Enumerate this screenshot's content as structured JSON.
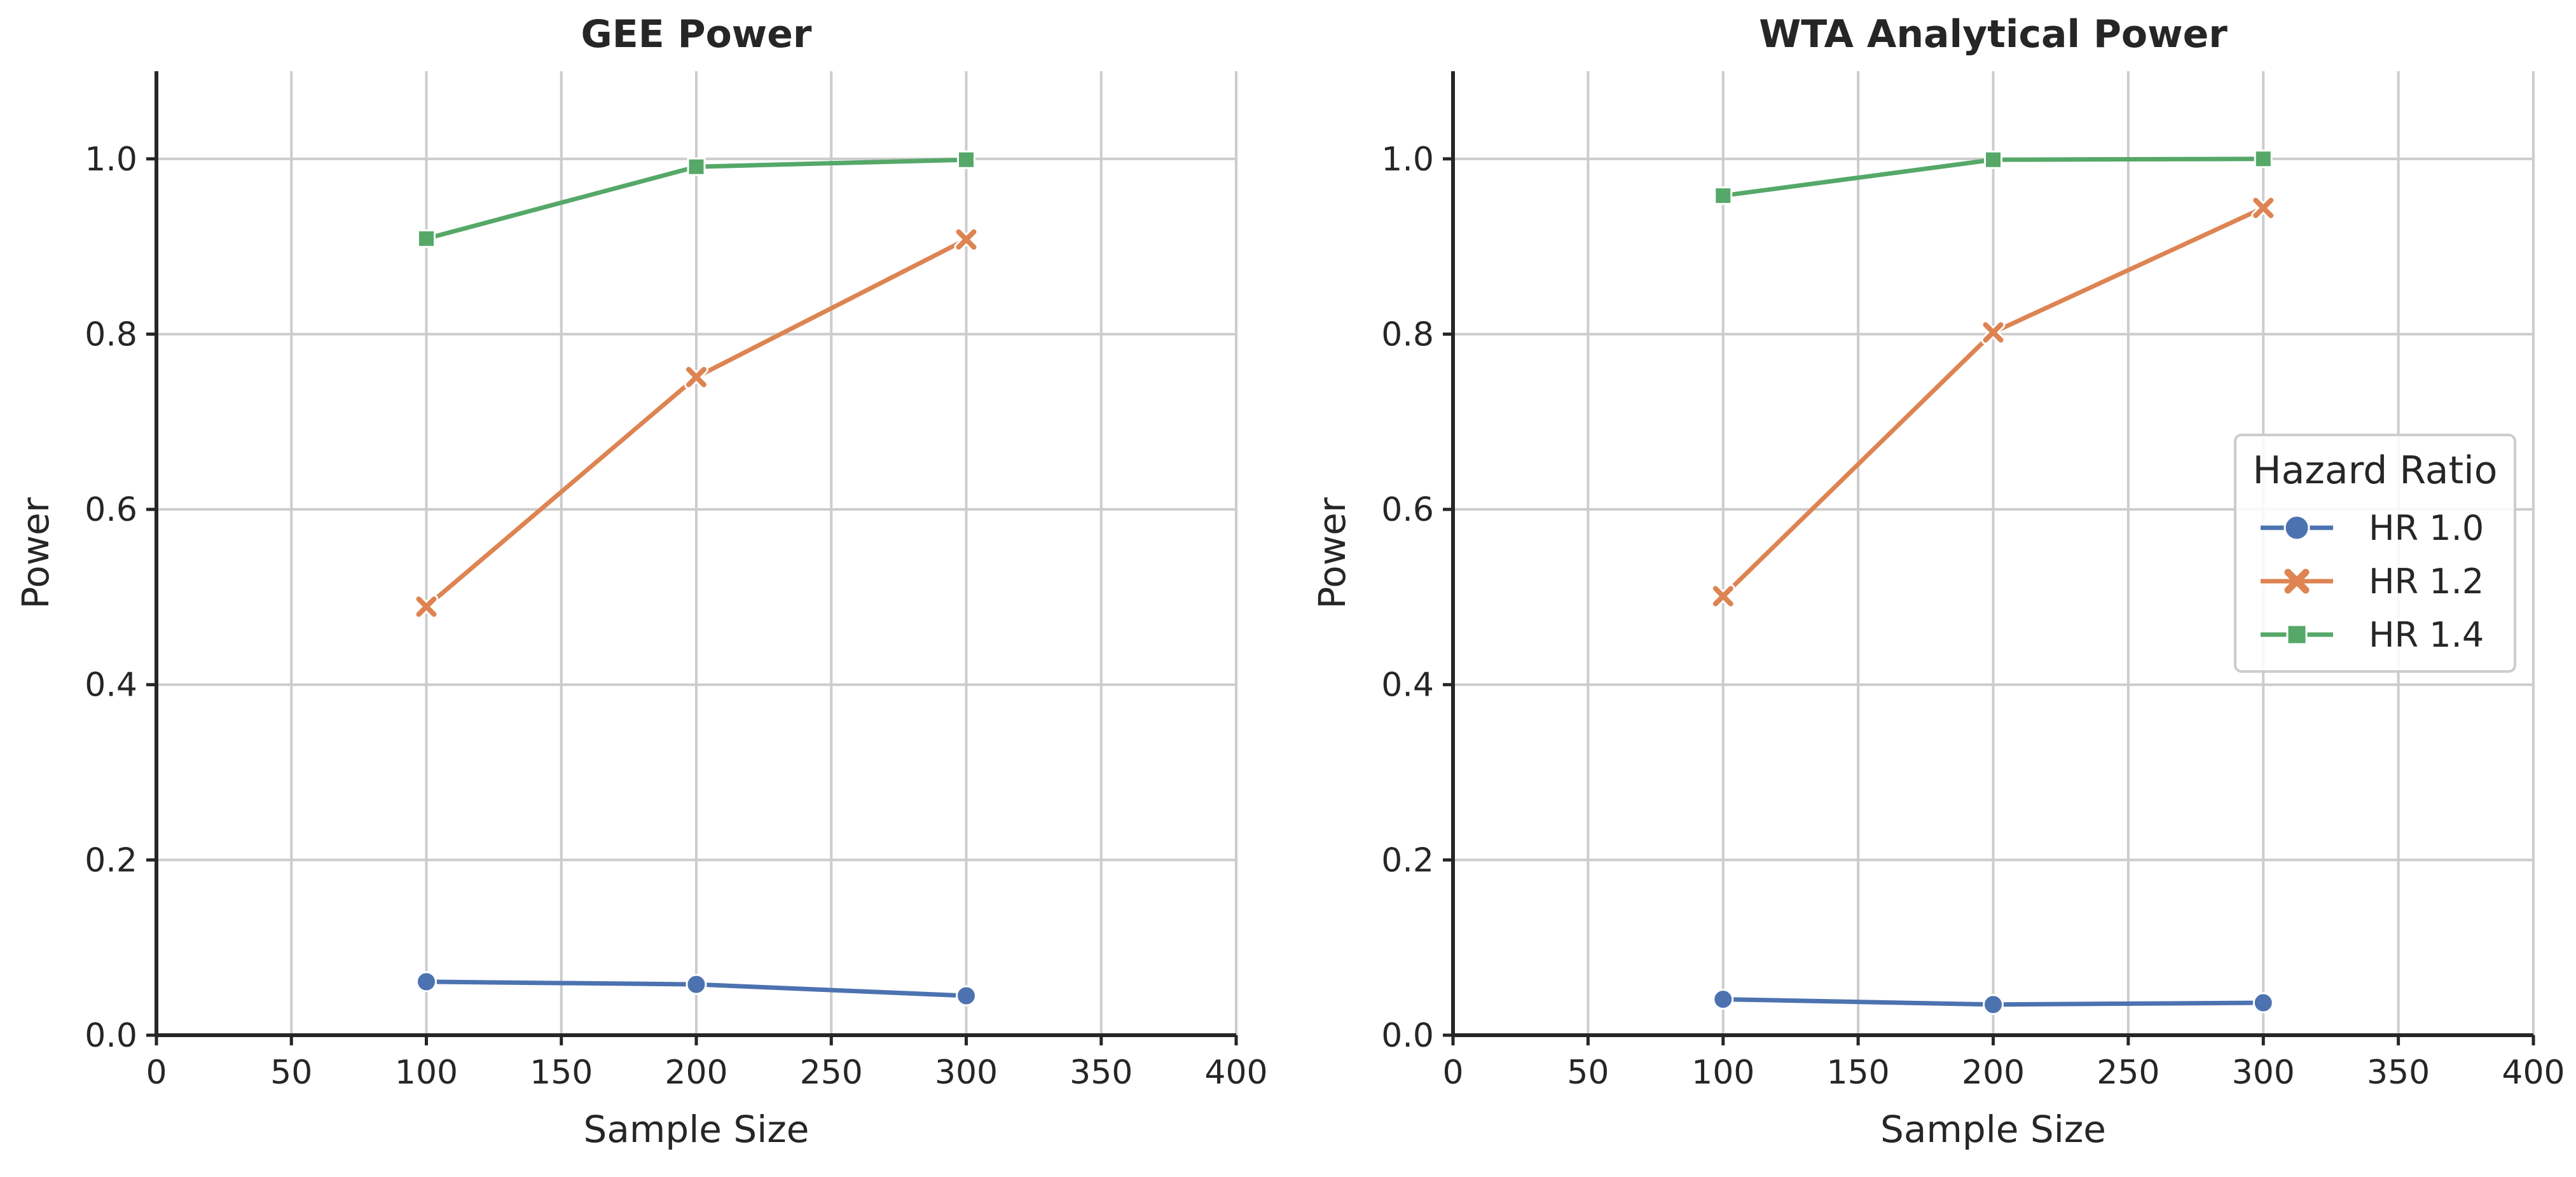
{
  "chart_data": [
    {
      "type": "line",
      "title": "GEE Power",
      "xlabel": "Sample Size",
      "ylabel": "Power",
      "xlim": [
        0,
        400
      ],
      "ylim": [
        0,
        1.1
      ],
      "xticks": [
        0,
        50,
        100,
        150,
        200,
        250,
        300,
        350,
        400
      ],
      "yticks": [
        0.0,
        0.2,
        0.4,
        0.6,
        0.8,
        1.0
      ],
      "grid": true,
      "show_legend": false,
      "x": [
        100,
        200,
        300
      ],
      "series": [
        {
          "name": "HR 1.0",
          "marker": "circle",
          "color": "#4c72b0",
          "values": [
            0.061,
            0.058,
            0.045
          ]
        },
        {
          "name": "HR 1.2",
          "marker": "x",
          "color": "#dd8452",
          "values": [
            0.489,
            0.751,
            0.908
          ]
        },
        {
          "name": "HR 1.4",
          "marker": "square",
          "color": "#55a868",
          "values": [
            0.909,
            0.991,
            0.999
          ]
        }
      ]
    },
    {
      "type": "line",
      "title": "WTA Analytical Power",
      "xlabel": "Sample Size",
      "ylabel": "Power",
      "xlim": [
        0,
        400
      ],
      "ylim": [
        0,
        1.1
      ],
      "xticks": [
        0,
        50,
        100,
        150,
        200,
        250,
        300,
        350,
        400
      ],
      "yticks": [
        0.0,
        0.2,
        0.4,
        0.6,
        0.8,
        1.0
      ],
      "grid": true,
      "show_legend": true,
      "legend_title": "Hazard Ratio",
      "legend_position": "center-right",
      "x": [
        100,
        200,
        300
      ],
      "series": [
        {
          "name": "HR 1.0",
          "marker": "circle",
          "color": "#4c72b0",
          "values": [
            0.041,
            0.035,
            0.037
          ]
        },
        {
          "name": "HR 1.2",
          "marker": "x",
          "color": "#dd8452",
          "values": [
            0.501,
            0.802,
            0.944
          ]
        },
        {
          "name": "HR 1.4",
          "marker": "square",
          "color": "#55a868",
          "values": [
            0.958,
            0.999,
            1.0
          ]
        }
      ]
    }
  ]
}
